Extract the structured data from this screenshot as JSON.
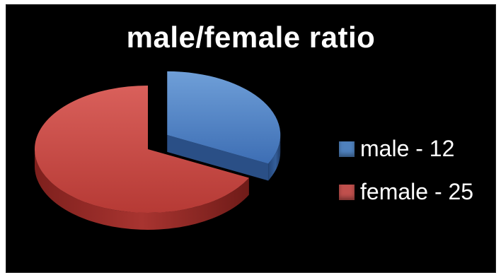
{
  "chart_data": {
    "type": "pie",
    "title": "male/female ratio",
    "categories": [
      "male",
      "female"
    ],
    "values": [
      12,
      25
    ],
    "colors": [
      "#4f81bd",
      "#c0504d"
    ],
    "exploded": [
      "male"
    ],
    "style": "3d",
    "legend_position": "right",
    "legend_labels": [
      "male - 12",
      "female - 25"
    ]
  }
}
